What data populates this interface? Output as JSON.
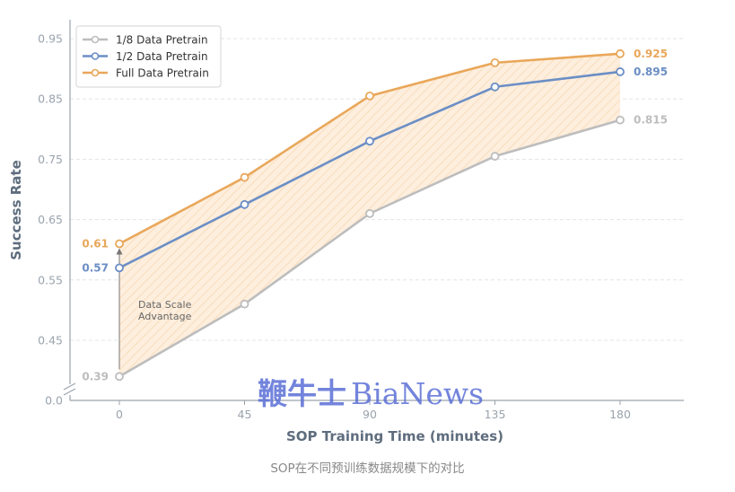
{
  "caption": "SOP在不同预训练数据规模下的对比",
  "watermark": {
    "chinese": "鞭牛士",
    "latin": "BiaNews"
  },
  "chart_data": {
    "type": "line",
    "x": [
      0,
      45,
      90,
      135,
      180
    ],
    "x_ticks": [
      "0",
      "45",
      "90",
      "135",
      "180"
    ],
    "y_ticks": [
      "0.0",
      "0.45",
      "0.55",
      "0.65",
      "0.75",
      "0.85",
      "0.95"
    ],
    "xlabel": "SOP Training Time (minutes)",
    "ylabel": "Success Rate",
    "ylim": [
      0.0,
      0.95
    ],
    "y_axis_broken": true,
    "grid": "horizontal dashed",
    "legend_position": "top-left",
    "series": [
      {
        "name": "1/8 Data Pretrain",
        "values": [
          0.39,
          0.51,
          0.66,
          0.755,
          0.815
        ],
        "color": "#bdbdbd",
        "start_label": "0.39",
        "end_label": "0.815"
      },
      {
        "name": "1/2 Data Pretrain",
        "values": [
          0.57,
          0.675,
          0.78,
          0.87,
          0.895
        ],
        "color": "#6b8ec5",
        "start_label": "0.57",
        "end_label": "0.895"
      },
      {
        "name": "Full Data Pretrain",
        "values": [
          0.61,
          0.72,
          0.855,
          0.91,
          0.925
        ],
        "color": "#e9a75a",
        "start_label": "0.61",
        "end_label": "0.925"
      }
    ],
    "shaded_region": {
      "between": [
        "1/8 Data Pretrain",
        "Full Data Pretrain"
      ],
      "color": "#f8cc98"
    },
    "annotation": {
      "lines": [
        "Data Scale",
        "Advantage"
      ],
      "x": 0
    }
  }
}
